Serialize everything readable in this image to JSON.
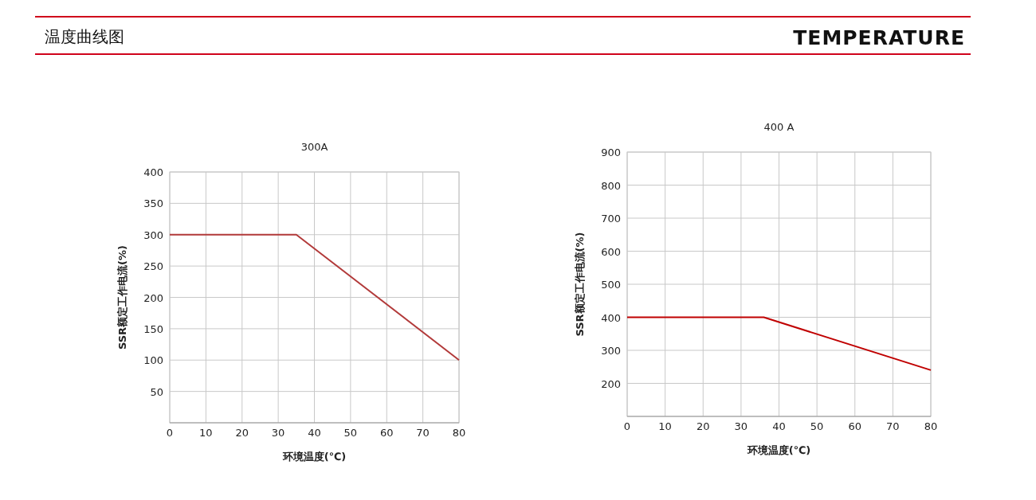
{
  "chart_data": [
    {
      "type": "other",
      "annotations": [
        "温度曲线图",
        "TEMPERATURE"
      ]
    },
    {
      "type": "line",
      "title": "300A",
      "xlabel": "环境温度(℃)",
      "ylabel": "SSR额定工作电流(%)",
      "x": [
        0,
        35,
        80
      ],
      "series": [
        {
          "color": "#b23a3a",
          "values": [
            300,
            300,
            100
          ]
        }
      ],
      "xlim": [
        0,
        80
      ],
      "xticks": [
        0,
        10,
        20,
        30,
        40,
        50,
        60,
        70,
        80
      ],
      "ylim": [
        0,
        400
      ],
      "yticks": [
        50,
        100,
        150,
        200,
        250,
        300,
        350,
        400
      ],
      "grid": true
    },
    {
      "type": "line",
      "title": "400 A",
      "xlabel": "环境温度(℃)",
      "ylabel": "SSR额定工作电流(%)",
      "x": [
        0,
        36,
        80
      ],
      "series": [
        {
          "color": "#c00000",
          "values": [
            400,
            400,
            240
          ]
        }
      ],
      "xlim": [
        0,
        80
      ],
      "xticks": [
        0,
        10,
        20,
        30,
        40,
        50,
        60,
        70,
        80
      ],
      "ylim": [
        100,
        900
      ],
      "yticks": [
        200,
        300,
        400,
        500,
        600,
        700,
        800,
        900
      ],
      "grid": true
    }
  ]
}
